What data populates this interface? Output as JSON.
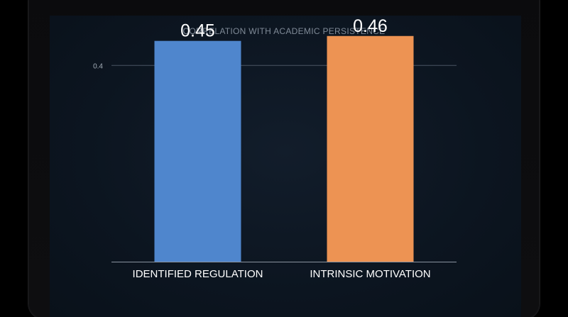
{
  "colors": {
    "background": "#0c1520",
    "gridline": "#4a5563",
    "axis": "#8a93a0"
  },
  "chart_data": {
    "type": "bar",
    "title": "CORRELATION WITH ACADEMIC PERSISTENCE",
    "categories": [
      "IDENTIFIED REGULATION",
      "INTRINSIC MOTIVATION"
    ],
    "values": [
      0.45,
      0.46
    ],
    "value_labels": [
      "0.45",
      "0.46"
    ],
    "bar_colors": [
      "#4f86cd",
      "#ed9353"
    ],
    "ylim": [
      0,
      0.49
    ],
    "yticks": [
      0.4
    ],
    "ytick_labels": [
      "0.4"
    ],
    "xlabel": "",
    "ylabel": "",
    "grid": true
  }
}
